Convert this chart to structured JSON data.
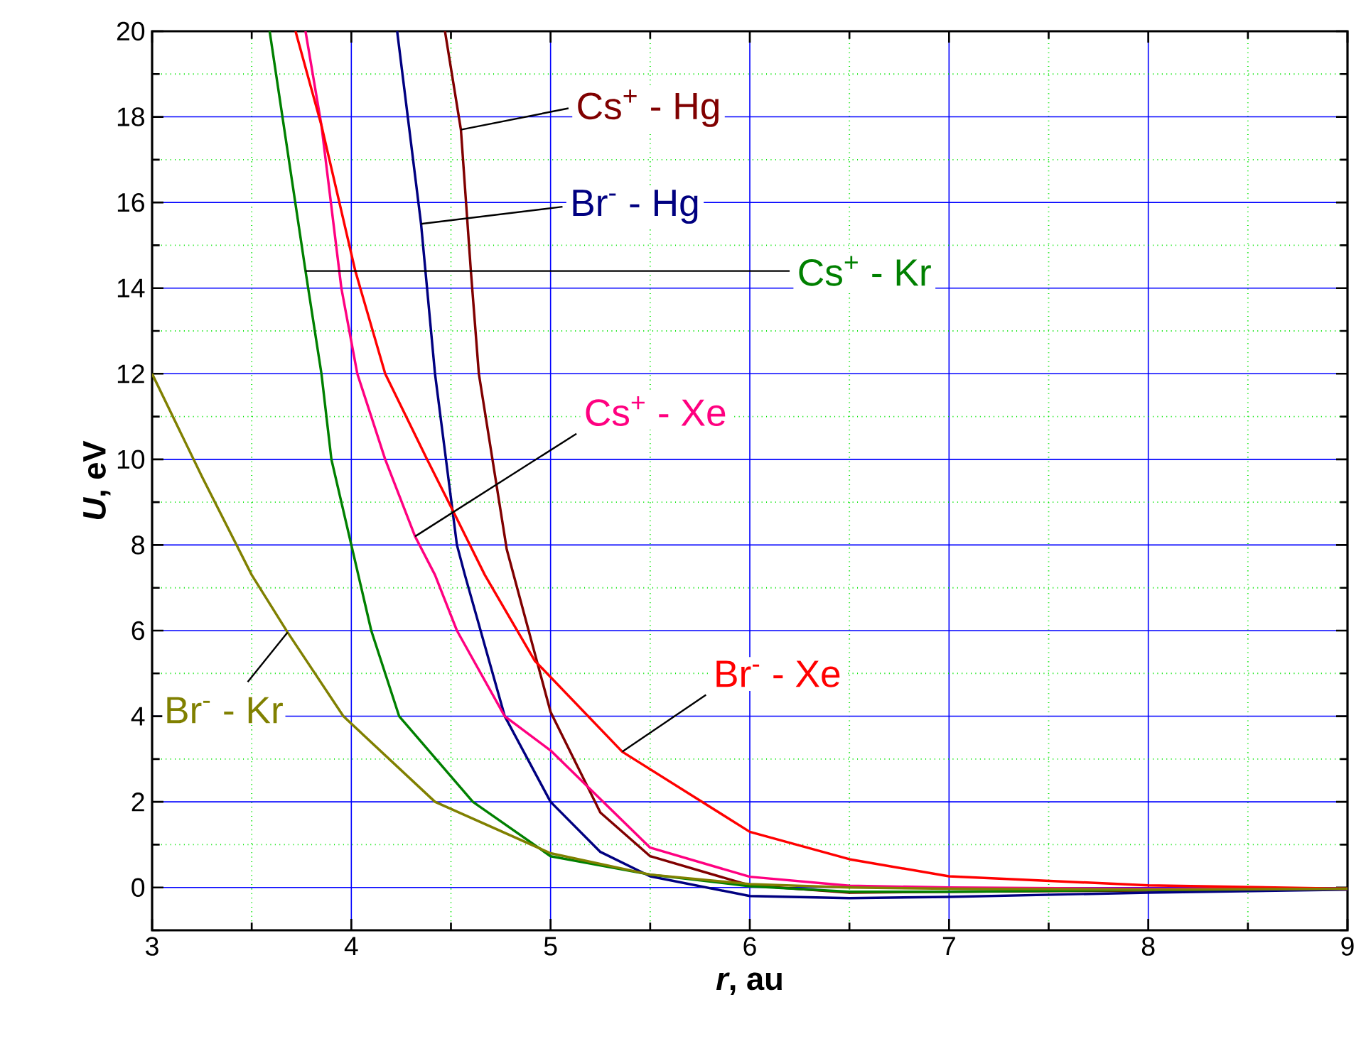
{
  "chart_data": {
    "type": "line",
    "xlabel": "*r*, au",
    "ylabel": "*U*, eV",
    "xlim": [
      3,
      9
    ],
    "ylim": [
      -1,
      20
    ],
    "xticks": [
      3,
      {
        "value": 3.5,
        "label": null
      },
      4,
      {
        "value": 4.5,
        "label": null
      },
      5,
      {
        "value": 5.5,
        "label": null
      },
      6,
      {
        "value": 6.5,
        "label": null
      },
      7,
      {
        "value": 7.5,
        "label": null
      },
      8,
      {
        "value": 8.5,
        "label": null
      },
      9
    ],
    "yticks": [
      {
        "value": -1,
        "label": null
      },
      0,
      {
        "value": 1,
        "label": null
      },
      2,
      {
        "value": 3,
        "label": null
      },
      4,
      {
        "value": 5,
        "label": null
      },
      6,
      {
        "value": 7,
        "label": null
      },
      8,
      {
        "value": 9,
        "label": null
      },
      10,
      {
        "value": 11,
        "label": null
      },
      12,
      {
        "value": 13,
        "label": null
      },
      14,
      {
        "value": 15,
        "label": null
      },
      16,
      {
        "value": 17,
        "label": null
      },
      18,
      {
        "value": 19,
        "label": null
      },
      20
    ],
    "grid": true,
    "legend": false,
    "marker": "none",
    "line_style": "solid",
    "series": [
      {
        "name": "Cs$^{+}$ - Hg",
        "color": "#800000",
        "x": [
          4.47,
          4.55,
          4.6,
          4.64,
          4.78,
          5,
          5.25,
          5.5,
          6,
          6.5,
          7,
          8,
          9
        ],
        "values": [
          20,
          17.7,
          14.4,
          12,
          7.9,
          4.1,
          1.75,
          0.73,
          0.05,
          -0.12,
          -0.1,
          -0.07,
          -0.03
        ]
      },
      {
        "name": "Br$^{-}$ - Hg",
        "color": "#000080",
        "x": [
          4.23,
          4.35,
          4.38,
          4.42,
          4.53,
          4.57,
          4.77,
          5,
          5.25,
          5.5,
          6,
          6.5,
          7,
          8,
          9
        ],
        "values": [
          20,
          15.5,
          14,
          12,
          8,
          7.3,
          4,
          2,
          0.83,
          0.26,
          -0.2,
          -0.25,
          -0.22,
          -0.12,
          -0.05
        ]
      },
      {
        "name": "Cs$^{+}$ - Kr",
        "color": "#008000",
        "x": [
          3.59,
          3.77,
          3.85,
          3.9,
          4,
          4.1,
          4.24,
          4.61,
          5,
          5.5,
          6,
          6.5,
          7,
          8,
          9
        ],
        "values": [
          20,
          14.4,
          12,
          10,
          8,
          6,
          4,
          2,
          0.73,
          0.3,
          0.03,
          -0.1,
          -0.1,
          -0.06,
          -0.03
        ]
      },
      {
        "name": "Cs$^{+}$ - Xe",
        "color": "#ff0080",
        "x": [
          3.77,
          3.85,
          3.95,
          4.03,
          4.17,
          4.32,
          4.42,
          4.53,
          4.77,
          5,
          5.5,
          6,
          6.5,
          7,
          8,
          9
        ],
        "values": [
          20,
          17.8,
          14,
          12,
          10,
          8.2,
          7.3,
          6,
          4,
          3.2,
          0.93,
          0.25,
          0.04,
          0,
          -0.03,
          -0.03
        ]
      },
      {
        "name": "Br$^{-}$ - Xe",
        "color": "#ff0000",
        "x": [
          3.72,
          3.85,
          4.02,
          4.17,
          4.38,
          4.51,
          4.67,
          4.92,
          5.36,
          6,
          6.5,
          7,
          8,
          9
        ],
        "values": [
          20,
          17.8,
          14.4,
          12,
          10,
          8.8,
          7.3,
          5.3,
          3.17,
          1.3,
          0.66,
          0.26,
          0.05,
          -0.03
        ]
      },
      {
        "name": "Br$^{-}$ - Kr",
        "color": "#808000",
        "x": [
          3,
          3.25,
          3.5,
          3.68,
          3.96,
          4.42,
          5,
          5.5,
          6,
          6.5,
          7,
          8,
          9
        ],
        "values": [
          12,
          9.6,
          7.3,
          5.96,
          4,
          2,
          0.8,
          0.3,
          0.08,
          0,
          -0.03,
          -0.05,
          -0.03
        ]
      }
    ]
  }
}
